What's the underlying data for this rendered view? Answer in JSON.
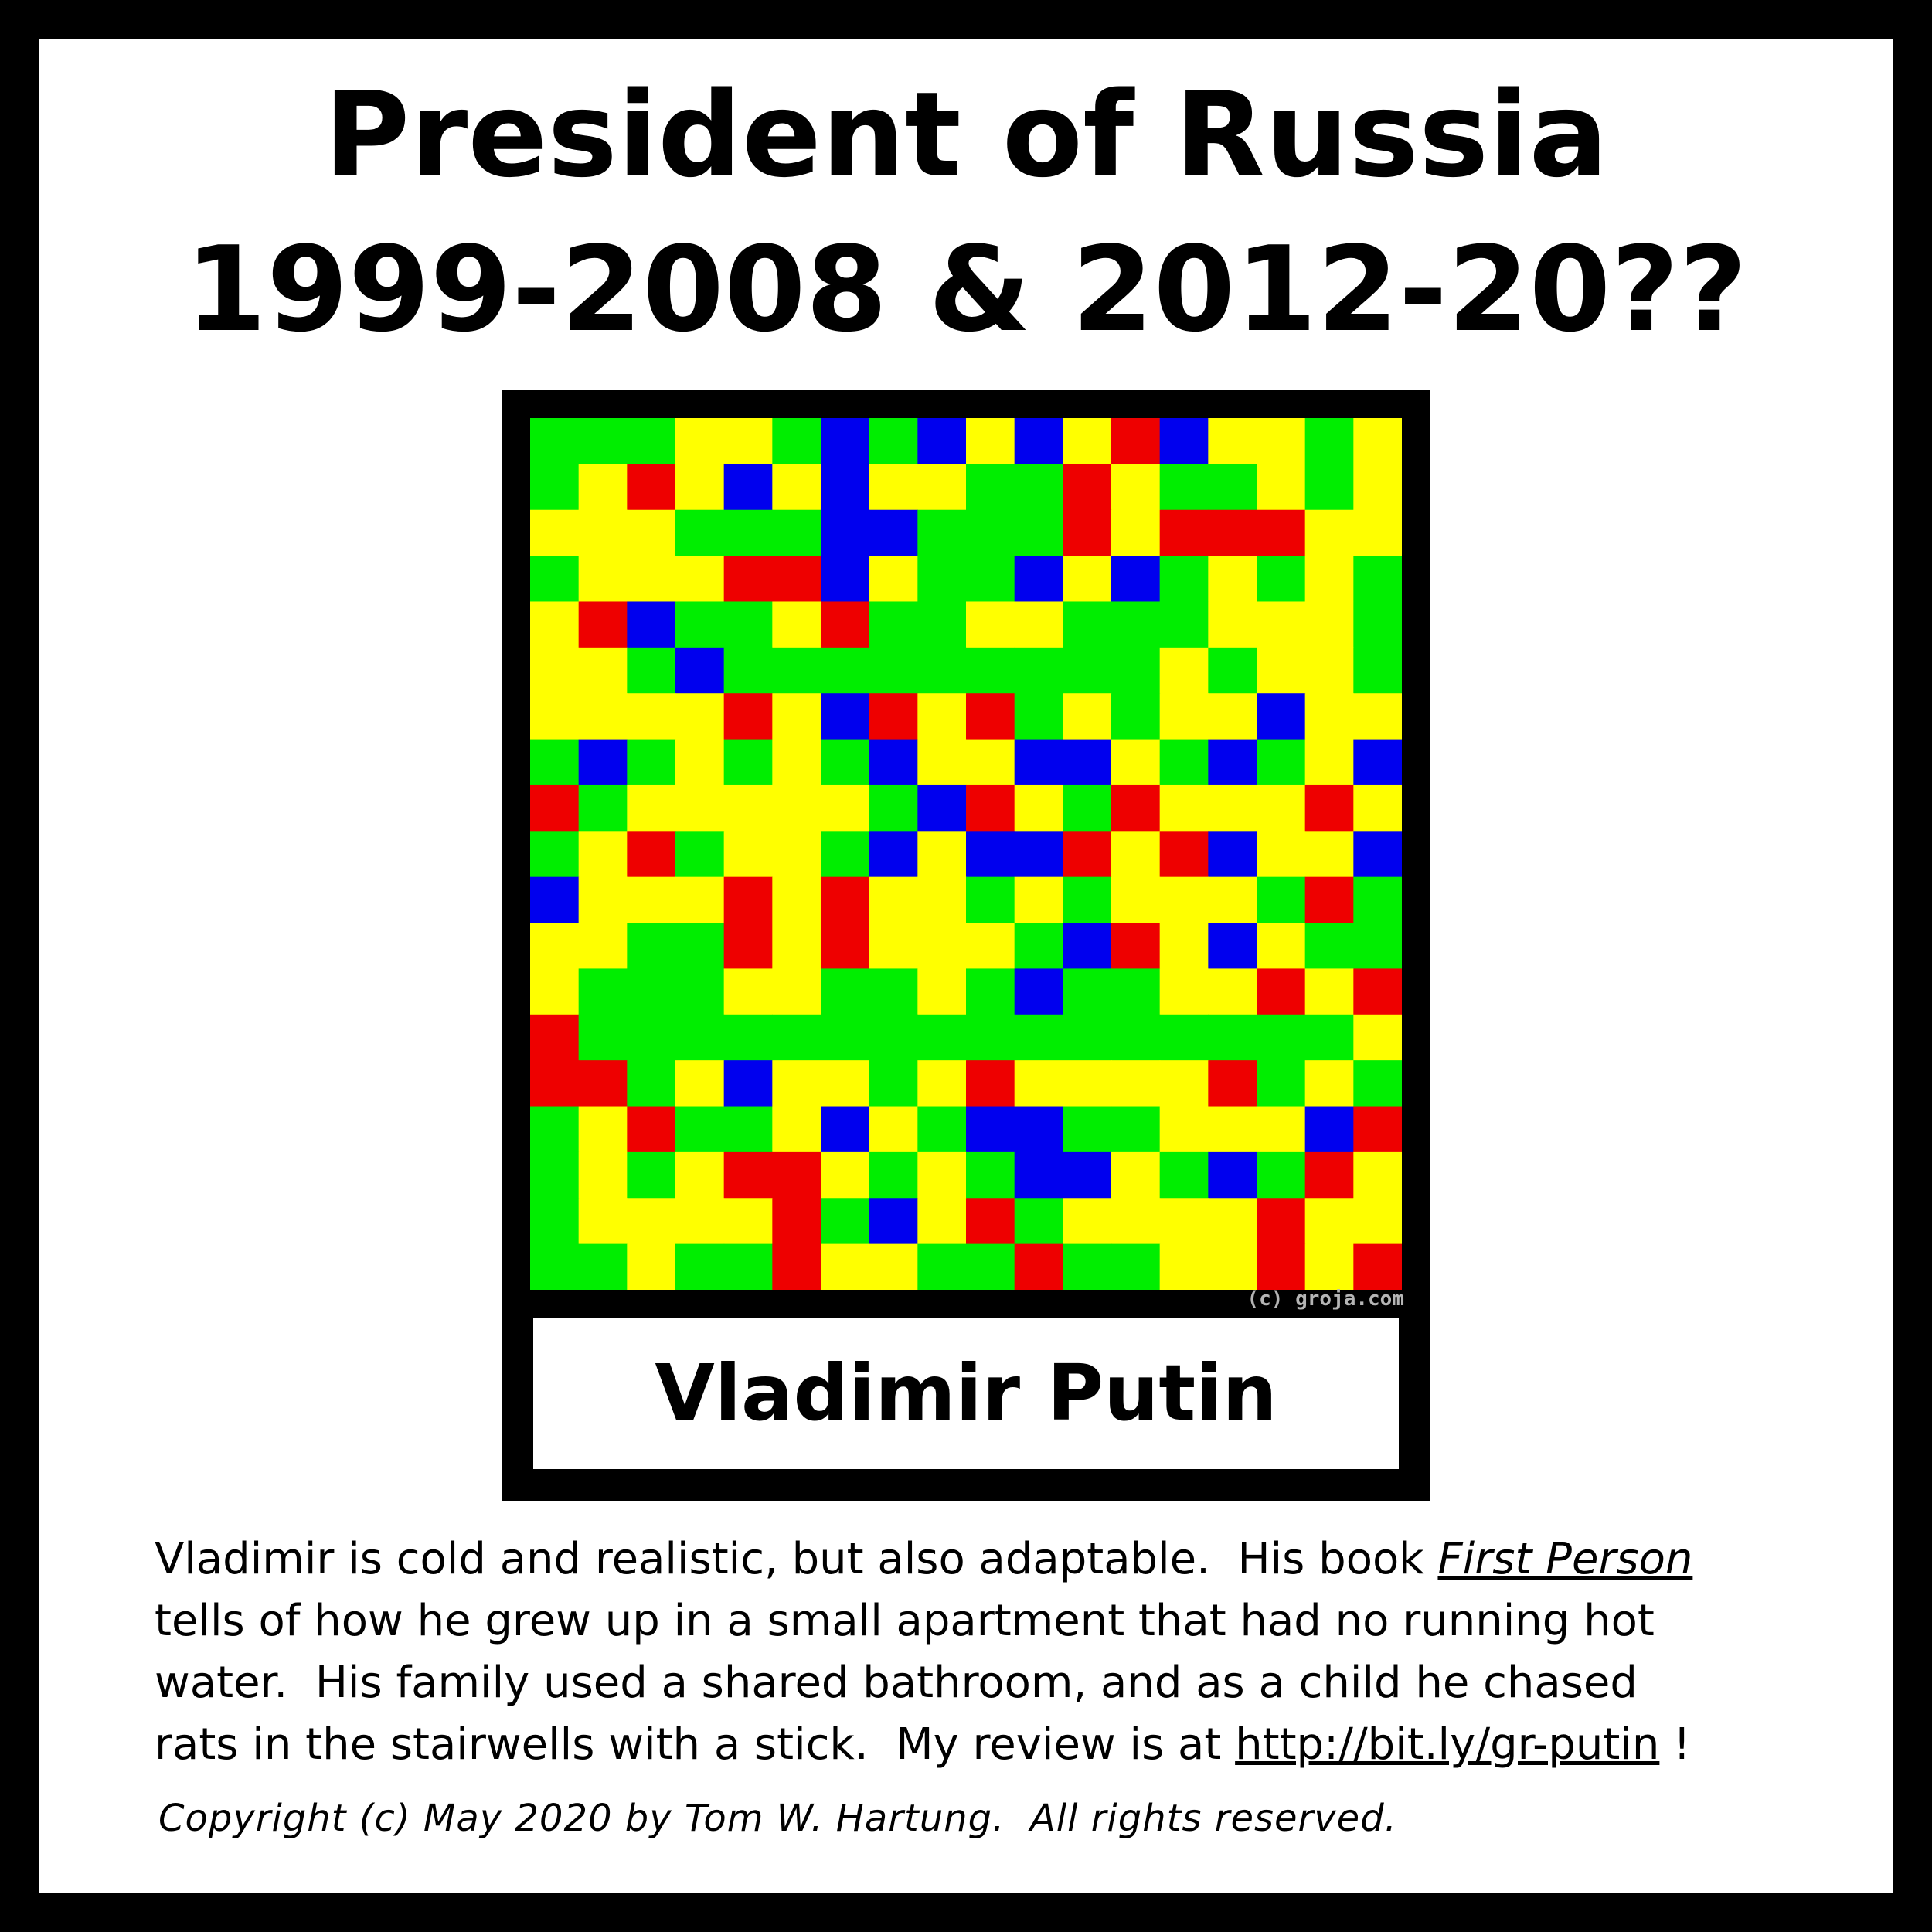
{
  "header": {
    "title_line1": "President of Russia",
    "title_line2": "1999-2008 & 2012-20??"
  },
  "card": {
    "watermark": "(c) groja.com",
    "name": "Vladimir Putin",
    "mosaic": {
      "palette": {
        "G": "#00ee00",
        "Y": "#ffff00",
        "R": "#ee0000",
        "B": "#0000ee"
      },
      "rows": [
        "GGGYYGBGBYBYRBYYGY",
        "GYRYBYBYYGGRYGGYGY",
        "YYYGGGBBGGGRYRRRYY",
        "GYYYRRBYGGBYBGYGYG",
        "YRBGGYRGGYYGGGYYYG",
        "YYGBGGGGGGGGGYGYYG",
        "YYYYRYBRYRGYGYYBYY",
        "GBGYGYGBYYBBYGBGYB",
        "RGYYYYYGBRYGRYYYRY",
        "GYRGYYGBYBBRYRBYYB",
        "BYYYRYRYYGYGYYYGRG",
        "YYGGRYRYYYGBRYBYGG",
        "YGGGYYGGYGBGGYYRYR",
        "RGGGGGGGGGGGGGGGGY",
        "RRGYBYYGYRYYYYRGYG",
        "GYRGGYBYGBBGGYYYBR",
        "GYGYRRYGYGBBYGBGRY",
        "GYYYYRGBYRGYYYYRYY",
        "GGYGGRYYGGRGGYYRYR"
      ]
    }
  },
  "description": {
    "line1_text": "Vladimir is cold and realistic, but also adaptable.  His book ",
    "book_title": "First Person",
    "line2": "tells of how he grew up in a small apartment that had no running hot",
    "line3": "water.  His family used a shared bathroom, and as a child he chased",
    "line4_text": "rats in the stairwells with a stick.  My review is at ",
    "review_link": "http://bit.ly/gr-putin",
    "line4_end": " !"
  },
  "footer": {
    "copyright": "Copyright (c) May 2020 by Tom W. Hartung.  All rights reserved."
  }
}
